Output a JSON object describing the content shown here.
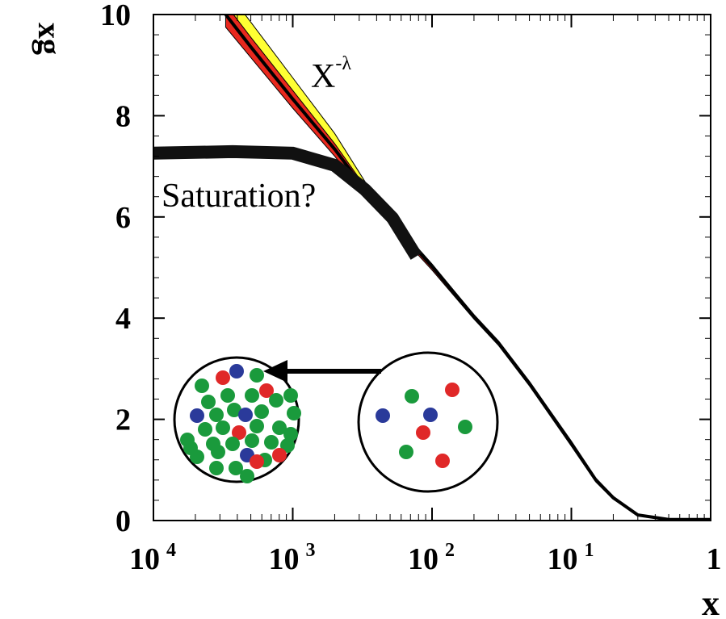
{
  "chart_data": {
    "type": "line",
    "y_label": "xg",
    "x_label": "x",
    "annotations": [
      {
        "text": "X",
        "exponent": "-λ"
      },
      {
        "text": "Saturation?"
      }
    ],
    "log_x": true,
    "xlim": [
      0.0001,
      1
    ],
    "ylim": [
      0,
      10
    ],
    "xticks": [
      {
        "value": 0.0001,
        "label": "10",
        "exponent": "4"
      },
      {
        "value": 0.001,
        "label": "10",
        "exponent": "3"
      },
      {
        "value": 0.01,
        "label": "10",
        "exponent": "2"
      },
      {
        "value": 0.1,
        "label": "10",
        "exponent": "1"
      },
      1
    ],
    "yticks": [
      0,
      2,
      4,
      6,
      8,
      10
    ],
    "x": [
      0.00033,
      0.0005,
      0.001,
      0.002,
      0.0033,
      0.005,
      0.01,
      0.02,
      0.03,
      0.05,
      0.1,
      0.15,
      0.2,
      0.3,
      0.5,
      1
    ],
    "bands": [
      {
        "color": "#ffff33",
        "lower": [
          10,
          9.36,
          8.33,
          7.34,
          6.54,
          5.93,
          5.02,
          4.03,
          3.51,
          2.71,
          1.52,
          0.8,
          0.45,
          0.11,
          0.02,
          0.02
        ],
        "upper": [
          10.5,
          9.85,
          8.75,
          7.65,
          6.7,
          6.0,
          5.07,
          4.06,
          3.53,
          2.72,
          1.53,
          0.81,
          0.46,
          0.11,
          0.02,
          0.02
        ]
      },
      {
        "color": "#e8281e",
        "lower": [
          9.75,
          9.15,
          8.15,
          7.2,
          6.45,
          5.85,
          4.95,
          3.98,
          3.46,
          2.66,
          1.47,
          0.76,
          0.42,
          0.1,
          0.02,
          0.02
        ],
        "upper": [
          10.2,
          9.55,
          8.5,
          7.45,
          6.6,
          5.98,
          5.06,
          4.07,
          3.55,
          2.75,
          1.57,
          0.84,
          0.48,
          0.12,
          0.02,
          0.02
        ]
      }
    ],
    "series": [
      {
        "color": "#000000",
        "values": [
          10,
          9.36,
          8.33,
          7.34,
          6.54,
          5.93,
          5.02,
          4.03,
          3.51,
          2.71,
          1.52,
          0.8,
          0.45,
          0.11,
          0.02,
          0.02
        ]
      },
      {
        "color": "#111111",
        "x": [
          0.0001,
          0.00037,
          0.001,
          0.002,
          0.0033,
          0.0052,
          0.0077
        ],
        "values": [
          7.26,
          7.29,
          7.26,
          7.02,
          6.54,
          5.98,
          5.22
        ]
      }
    ]
  }
}
